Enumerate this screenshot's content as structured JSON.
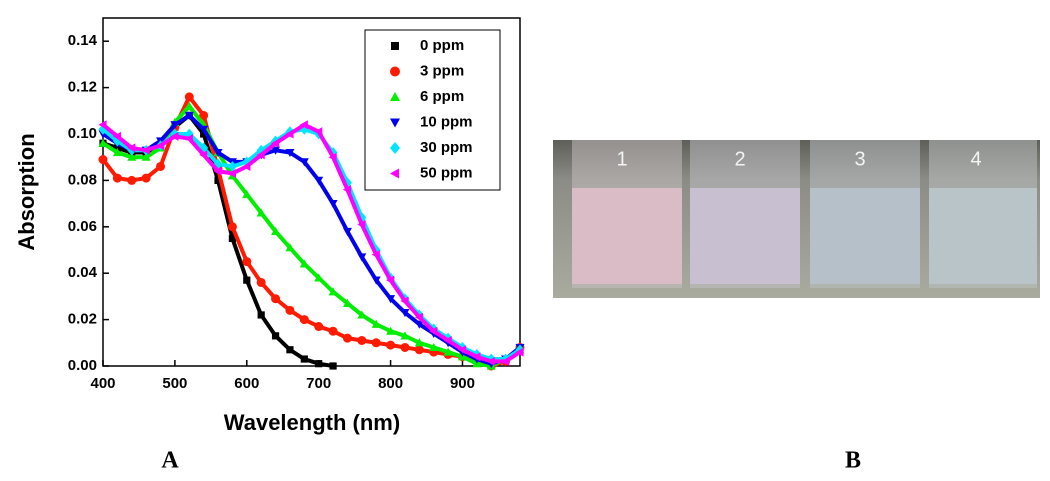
{
  "chart_data": {
    "type": "line",
    "x": [
      400,
      420,
      440,
      460,
      480,
      500,
      520,
      540,
      560,
      580,
      600,
      620,
      640,
      660,
      680,
      700,
      720,
      740,
      760,
      780,
      800,
      820,
      840,
      860,
      880,
      900,
      920,
      940,
      960,
      980
    ],
    "xlabel": "Wavelength (nm)",
    "ylabel": "Absorption",
    "xlim": [
      400,
      980
    ],
    "xticks": [
      400,
      500,
      600,
      700,
      800,
      900
    ],
    "ylim": [
      0,
      0.15
    ],
    "yticks": [
      {
        "value": 0,
        "label": "0.00"
      },
      {
        "value": 0.02,
        "label": "0.02"
      },
      {
        "value": 0.04,
        "label": "0.04"
      },
      {
        "value": 0.06,
        "label": "0.06"
      },
      {
        "value": 0.08,
        "label": "0.08"
      },
      {
        "value": 0.1,
        "label": "0.10"
      },
      {
        "value": 0.12,
        "label": "0.12"
      },
      {
        "value": 0.14,
        "label": "0.14"
      }
    ],
    "legend": "upper right",
    "series": [
      {
        "name": "0 ppm",
        "color": "#000000",
        "marker": "square",
        "values": [
          0.096,
          0.094,
          0.092,
          0.092,
          0.095,
          0.103,
          0.108,
          0.1,
          0.08,
          0.055,
          0.037,
          0.022,
          0.013,
          0.007,
          0.003,
          0.001,
          0.0,
          null,
          null,
          null,
          null,
          null,
          null,
          null,
          null,
          null,
          null,
          null,
          null,
          null
        ]
      },
      {
        "name": "3 ppm",
        "color": "#ff1a00",
        "marker": "circle",
        "values": [
          0.089,
          0.081,
          0.08,
          0.081,
          0.086,
          0.103,
          0.116,
          0.108,
          0.085,
          0.06,
          0.045,
          0.036,
          0.029,
          0.024,
          0.02,
          0.017,
          0.015,
          0.012,
          0.011,
          0.01,
          0.009,
          0.008,
          0.007,
          0.006,
          0.005,
          0.004,
          0.002,
          0.0,
          0.002,
          0.008
        ]
      },
      {
        "name": "6 ppm",
        "color": "#00ee00",
        "marker": "triangle-up",
        "values": [
          0.096,
          0.092,
          0.09,
          0.09,
          0.094,
          0.105,
          0.112,
          0.104,
          0.092,
          0.082,
          0.074,
          0.066,
          0.058,
          0.051,
          0.044,
          0.038,
          0.032,
          0.027,
          0.022,
          0.018,
          0.015,
          0.013,
          0.01,
          0.008,
          0.006,
          0.004,
          0.001,
          0.0,
          0.003,
          0.007
        ]
      },
      {
        "name": "10 ppm",
        "color": "#0000ee",
        "marker": "triangle-down",
        "values": [
          0.1,
          0.096,
          0.093,
          0.093,
          0.097,
          0.104,
          0.108,
          0.102,
          0.092,
          0.088,
          0.088,
          0.091,
          0.093,
          0.092,
          0.088,
          0.08,
          0.07,
          0.058,
          0.047,
          0.037,
          0.029,
          0.023,
          0.018,
          0.014,
          0.01,
          0.006,
          0.003,
          0.001,
          0.003,
          0.008
        ]
      },
      {
        "name": "30 ppm",
        "color": "#00e5ff",
        "marker": "diamond",
        "values": [
          0.102,
          0.097,
          0.093,
          0.093,
          0.095,
          0.1,
          0.1,
          0.094,
          0.087,
          0.086,
          0.088,
          0.093,
          0.097,
          0.101,
          0.102,
          0.1,
          0.092,
          0.079,
          0.064,
          0.05,
          0.038,
          0.029,
          0.022,
          0.016,
          0.012,
          0.008,
          0.005,
          0.003,
          0.003,
          0.007
        ]
      },
      {
        "name": "50 ppm",
        "color": "#ff00ff",
        "marker": "triangle-left",
        "values": [
          0.104,
          0.099,
          0.094,
          0.093,
          0.095,
          0.099,
          0.098,
          0.091,
          0.084,
          0.083,
          0.086,
          0.091,
          0.096,
          0.1,
          0.104,
          0.101,
          0.09,
          0.076,
          0.061,
          0.048,
          0.037,
          0.028,
          0.021,
          0.015,
          0.011,
          0.007,
          0.004,
          0.002,
          0.002,
          0.006
        ]
      }
    ]
  },
  "panel_labels": [
    "A",
    "B"
  ],
  "photo": {
    "vial_labels": [
      "1",
      "2",
      "3",
      "4"
    ]
  }
}
